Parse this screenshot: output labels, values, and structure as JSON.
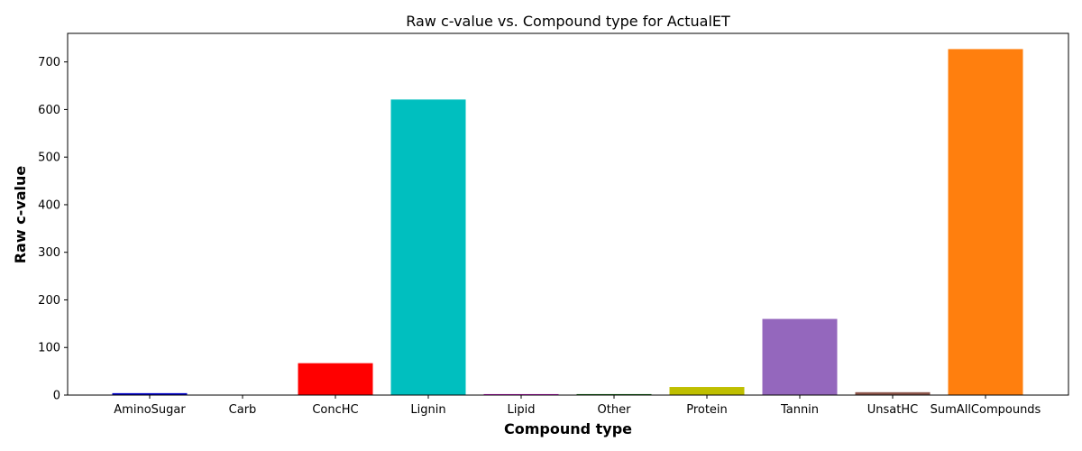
{
  "chart_data": {
    "type": "bar",
    "title": "Raw c-value vs. Compound type for ActualET",
    "xlabel": "Compound type",
    "ylabel": "Raw c-value",
    "categories": [
      "AminoSugar",
      "Carb",
      "ConcHC",
      "Lignin",
      "Lipid",
      "Other",
      "Protein",
      "Tannin",
      "UnsatHC",
      "SumAllCompounds"
    ],
    "values": [
      4,
      0,
      67,
      621,
      2,
      2,
      17,
      160,
      6,
      727
    ],
    "colors": [
      "#0000cc",
      "#0000ff",
      "#ff0000",
      "#00bfbf",
      "#bf00bf",
      "#006400",
      "#bfbf00",
      "#9467bd",
      "#8c564b",
      "#ff7f0e"
    ],
    "ylim": [
      0,
      760
    ],
    "yticks": [
      0,
      100,
      200,
      300,
      400,
      500,
      600,
      700
    ],
    "grid": false,
    "legend": "none"
  }
}
